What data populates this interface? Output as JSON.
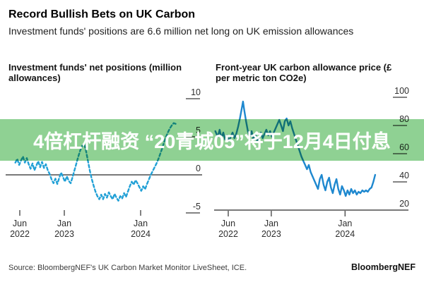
{
  "header": {
    "title": "Record Bullish Bets on UK Carbon",
    "subtitle": "Investment funds' positions are 6.6 million net long on UK emission allowances"
  },
  "overlay": {
    "text": "4倍杠杆融资 “20青城05”将于12月4日付息",
    "background_color": "#8fd193",
    "text_color": "#ffffff"
  },
  "colors": {
    "dashed_line": "#21a0d6",
    "solid_line": "#1e88cf",
    "axis_line": "#4d4d4d",
    "tick_dash": "#5a5a5a",
    "axis_label": "#2e2e2e"
  },
  "chart_data": [
    {
      "type": "line",
      "title": "Investment funds' net positions (million allowances)",
      "series_name": "Net positions (million allowances)",
      "line_style": "dashed",
      "x_unit": "months since Jun 2022",
      "x_tick_labels": [
        "Jun 2022",
        "Jan 2023",
        "Jan 2024"
      ],
      "x_tick_months": [
        0,
        7,
        19
      ],
      "y_ticks": [
        10,
        5,
        0,
        -5
      ],
      "ylim": [
        -5,
        10
      ],
      "zero_line": true,
      "grid": false,
      "points": [
        [
          -0.7,
          1.6
        ],
        [
          -0.4,
          2.1
        ],
        [
          -0.1,
          1.3
        ],
        [
          0.2,
          1.9
        ],
        [
          0.5,
          2.4
        ],
        [
          0.8,
          1.6
        ],
        [
          1.1,
          2.2
        ],
        [
          1.4,
          1.4
        ],
        [
          1.7,
          0.8
        ],
        [
          2,
          1.5
        ],
        [
          2.3,
          0.6
        ],
        [
          2.6,
          1.2
        ],
        [
          2.9,
          1.8
        ],
        [
          3.2,
          1
        ],
        [
          3.5,
          1.7
        ],
        [
          3.8,
          0.9
        ],
        [
          4.1,
          1.4
        ],
        [
          4.4,
          0.6
        ],
        [
          4.7,
          0.1
        ],
        [
          5,
          -0.6
        ],
        [
          5.3,
          -1.1
        ],
        [
          5.6,
          -0.5
        ],
        [
          5.9,
          -1.2
        ],
        [
          6.2,
          -0.4
        ],
        [
          6.5,
          0.3
        ],
        [
          6.8,
          -0.3
        ],
        [
          7.1,
          -0.9
        ],
        [
          7.4,
          -0.2
        ],
        [
          7.7,
          -0.8
        ],
        [
          8,
          -1.1
        ],
        [
          8.3,
          -0.3
        ],
        [
          8.6,
          0.6
        ],
        [
          8.9,
          1.5
        ],
        [
          9.2,
          2.4
        ],
        [
          9.5,
          3.2
        ],
        [
          9.8,
          3.8
        ],
        [
          10.1,
          4.1
        ],
        [
          10.4,
          3.2
        ],
        [
          10.7,
          1.9
        ],
        [
          11,
          0.6
        ],
        [
          11.3,
          -0.5
        ],
        [
          11.6,
          -1.4
        ],
        [
          11.9,
          -2.2
        ],
        [
          12.2,
          -2.8
        ],
        [
          12.5,
          -3.2
        ],
        [
          12.8,
          -2.6
        ],
        [
          13.1,
          -3.2
        ],
        [
          13.4,
          -2.5
        ],
        [
          13.7,
          -3
        ],
        [
          14,
          -2.3
        ],
        [
          14.3,
          -2.8
        ],
        [
          14.6,
          -3.2
        ],
        [
          14.9,
          -2.5
        ],
        [
          15.2,
          -3
        ],
        [
          15.5,
          -3.4
        ],
        [
          15.8,
          -2.8
        ],
        [
          16.1,
          -3.1
        ],
        [
          16.4,
          -2.4
        ],
        [
          16.7,
          -2.9
        ],
        [
          17,
          -2.2
        ],
        [
          17.3,
          -1.5
        ],
        [
          17.6,
          -0.9
        ],
        [
          17.9,
          -1.3
        ],
        [
          18.2,
          -0.7
        ],
        [
          18.5,
          -1.1
        ],
        [
          18.8,
          -1.6
        ],
        [
          19.1,
          -2.1
        ],
        [
          19.4,
          -1.5
        ],
        [
          19.7,
          -1.9
        ],
        [
          20,
          -1.2
        ],
        [
          20.3,
          -0.6
        ],
        [
          20.6,
          0
        ],
        [
          20.9,
          0.5
        ],
        [
          21.2,
          1
        ],
        [
          21.5,
          1.5
        ],
        [
          21.8,
          2.1
        ],
        [
          22.1,
          2.8
        ],
        [
          22.4,
          3.5
        ],
        [
          22.7,
          4.3
        ],
        [
          23,
          5
        ],
        [
          23.3,
          5.6
        ],
        [
          23.6,
          6.1
        ],
        [
          23.9,
          6.5
        ],
        [
          24.2,
          6.8
        ],
        [
          24.5,
          6.7
        ]
      ]
    },
    {
      "type": "line",
      "title": "Front-year UK carbon allowance price (£ per metric ton CO2e)",
      "series_name": "Front-year UK carbon allowance price (GBP/t CO2e)",
      "line_style": "solid",
      "x_unit": "months since Jun 2022",
      "x_tick_labels": [
        "Jun 2022",
        "Jan 2023",
        "Jan 2024"
      ],
      "x_tick_months": [
        0,
        7,
        19
      ],
      "y_ticks": [
        100,
        80,
        60,
        40,
        20
      ],
      "ylim": [
        20,
        100
      ],
      "baseline_value": 20,
      "grid": false,
      "points": [
        [
          -2.1,
          76
        ],
        [
          -1.7,
          72
        ],
        [
          -1.4,
          77
        ],
        [
          -1.1,
          71
        ],
        [
          -0.8,
          75
        ],
        [
          -0.5,
          70
        ],
        [
          -0.2,
          73
        ],
        [
          0.1,
          69
        ],
        [
          0.4,
          72
        ],
        [
          0.7,
          75
        ],
        [
          1,
          71
        ],
        [
          1.3,
          74
        ],
        [
          1.6,
          79
        ],
        [
          1.9,
          85
        ],
        [
          2.2,
          92
        ],
        [
          2.4,
          97
        ],
        [
          2.6,
          91
        ],
        [
          2.9,
          83
        ],
        [
          3.2,
          76
        ],
        [
          3.5,
          72
        ],
        [
          3.8,
          76
        ],
        [
          4.1,
          70
        ],
        [
          4.4,
          74
        ],
        [
          4.7,
          69
        ],
        [
          5,
          72
        ],
        [
          5.3,
          75
        ],
        [
          5.6,
          71
        ],
        [
          5.9,
          74
        ],
        [
          6.2,
          77
        ],
        [
          6.5,
          73
        ],
        [
          6.8,
          76
        ],
        [
          7.1,
          72
        ],
        [
          7.4,
          75
        ],
        [
          7.7,
          78
        ],
        [
          8,
          81
        ],
        [
          8.3,
          84
        ],
        [
          8.6,
          80
        ],
        [
          8.9,
          76
        ],
        [
          9.2,
          83
        ],
        [
          9.5,
          85
        ],
        [
          9.8,
          80
        ],
        [
          10.1,
          83
        ],
        [
          10.4,
          78
        ],
        [
          10.7,
          74
        ],
        [
          11,
          70
        ],
        [
          11.3,
          66
        ],
        [
          11.6,
          62
        ],
        [
          11.9,
          58
        ],
        [
          12.2,
          55
        ],
        [
          12.5,
          52
        ],
        [
          12.8,
          49
        ],
        [
          13.1,
          52
        ],
        [
          13.4,
          47
        ],
        [
          13.7,
          44
        ],
        [
          14,
          41
        ],
        [
          14.3,
          38
        ],
        [
          14.6,
          35
        ],
        [
          14.9,
          42
        ],
        [
          15.2,
          45
        ],
        [
          15.5,
          38
        ],
        [
          15.8,
          34
        ],
        [
          16.1,
          40
        ],
        [
          16.4,
          43
        ],
        [
          16.7,
          36
        ],
        [
          17,
          32
        ],
        [
          17.3,
          38
        ],
        [
          17.6,
          42
        ],
        [
          17.9,
          35
        ],
        [
          18.2,
          31
        ],
        [
          18.5,
          37
        ],
        [
          18.8,
          34
        ],
        [
          19.1,
          30
        ],
        [
          19.4,
          34
        ],
        [
          19.7,
          31
        ],
        [
          20,
          35
        ],
        [
          20.3,
          32
        ],
        [
          20.6,
          34
        ],
        [
          20.9,
          31
        ],
        [
          21.2,
          33
        ],
        [
          21.5,
          32
        ],
        [
          21.8,
          34
        ],
        [
          22.1,
          33
        ],
        [
          22.4,
          34
        ],
        [
          22.7,
          33
        ],
        [
          23,
          35
        ],
        [
          23.3,
          36
        ],
        [
          23.6,
          40
        ],
        [
          23.9,
          45
        ]
      ]
    }
  ],
  "footer": {
    "source": "Source: BloombergNEF's UK Carbon Market Monitor LiveSheet, ICE.",
    "brand": "BloombergNEF"
  }
}
